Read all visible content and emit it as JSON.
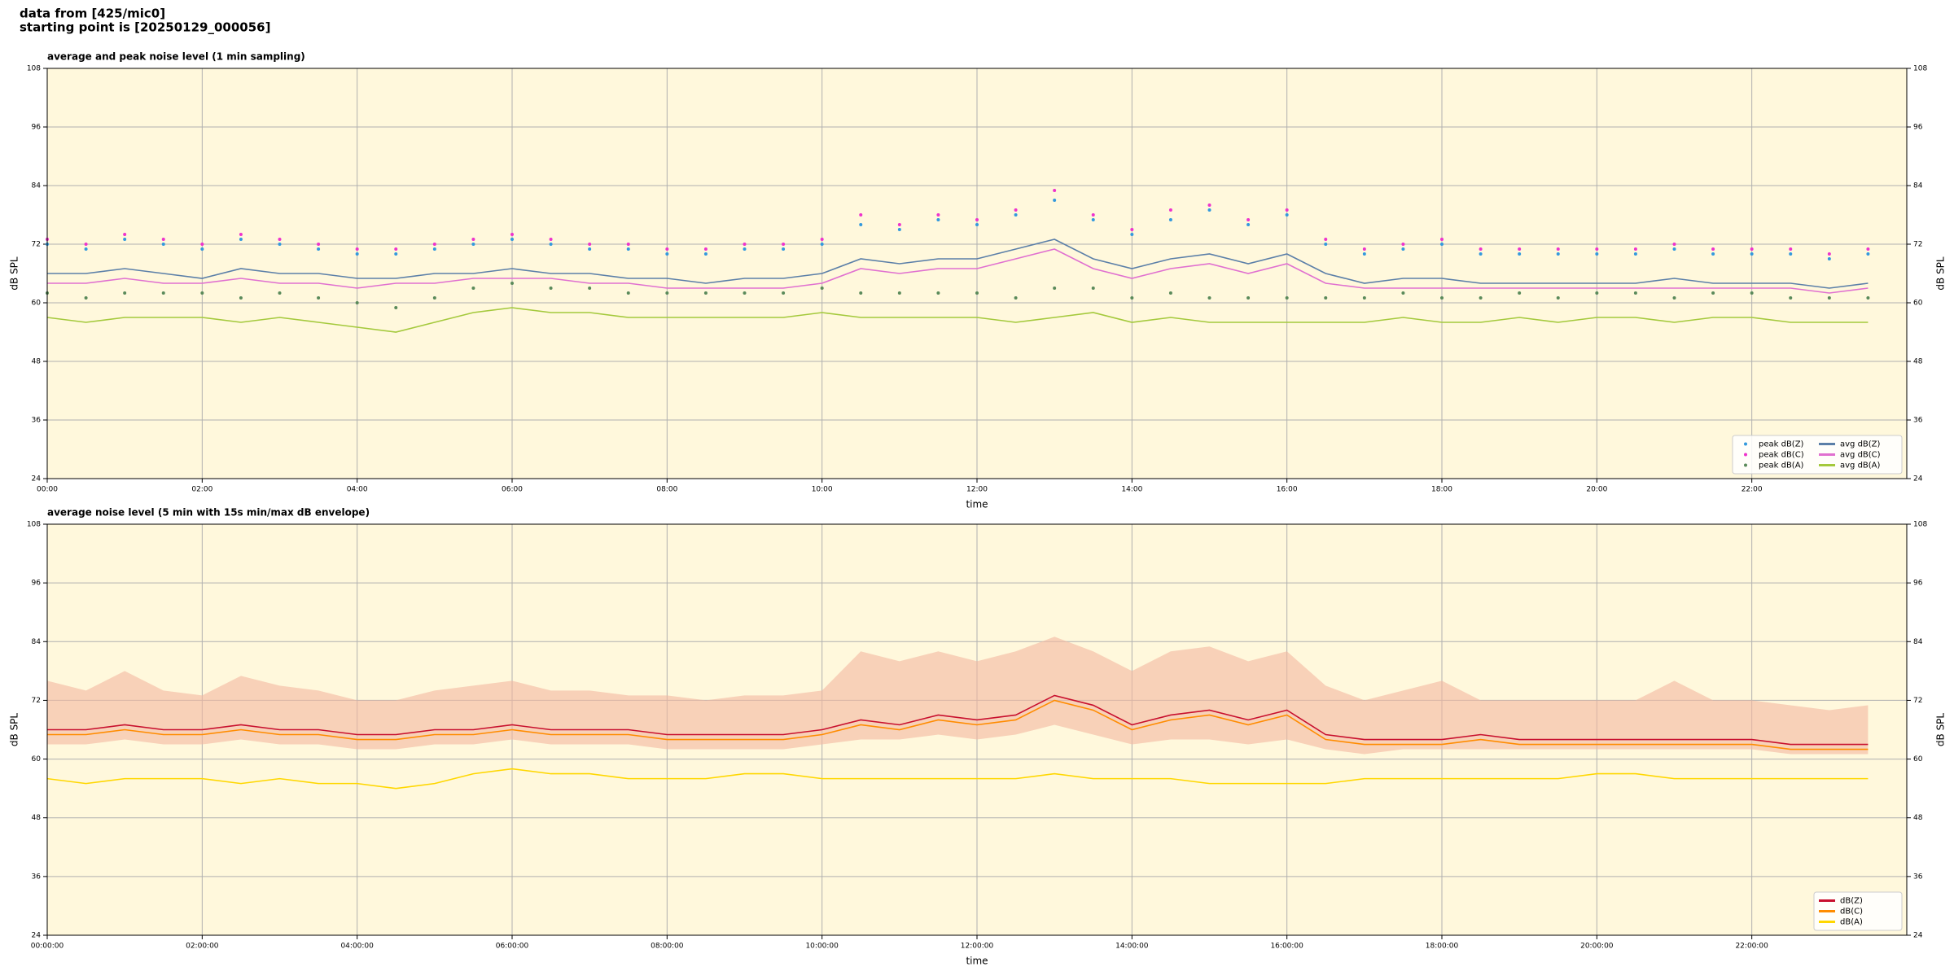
{
  "header": {
    "lines": [
      "data from [425/mic0]",
      "starting point is [20250129_000056]"
    ]
  },
  "chart_data": [
    {
      "type": "line",
      "title": "average and peak noise level (1 min sampling)",
      "xlabel": "time",
      "ylabel": "dB SPL",
      "x": [
        0,
        0.5,
        1,
        1.5,
        2,
        2.5,
        3,
        3.5,
        4,
        4.5,
        5,
        5.5,
        6,
        6.5,
        7,
        7.5,
        8,
        8.5,
        9,
        9.5,
        10,
        10.5,
        11,
        11.5,
        12,
        12.5,
        13,
        13.5,
        14,
        14.5,
        15,
        15.5,
        16,
        16.5,
        17,
        17.5,
        18,
        18.5,
        19,
        19.5,
        20,
        20.5,
        21,
        21.5,
        22,
        22.5,
        23,
        23.5
      ],
      "xlim": [
        0,
        24
      ],
      "ylim": [
        24,
        108
      ],
      "xticks": [
        {
          "value": 0,
          "label": "00:00"
        },
        {
          "value": 2,
          "label": "02:00"
        },
        {
          "value": 4,
          "label": "04:00"
        },
        {
          "value": 6,
          "label": "06:00"
        },
        {
          "value": 8,
          "label": "08:00"
        },
        {
          "value": 10,
          "label": "10:00"
        },
        {
          "value": 12,
          "label": "12:00"
        },
        {
          "value": 14,
          "label": "14:00"
        },
        {
          "value": 16,
          "label": "16:00"
        },
        {
          "value": 18,
          "label": "18:00"
        },
        {
          "value": 20,
          "label": "20:00"
        },
        {
          "value": 22,
          "label": "22:00"
        }
      ],
      "yticks": [
        24,
        36,
        48,
        60,
        72,
        84,
        96,
        108
      ],
      "grid": true,
      "background": "#fff8dc",
      "legend": "lower right",
      "legend_columns": 2,
      "series": [
        {
          "name": "peak dB(Z)",
          "style": "scatter",
          "color": "#3399dd",
          "values": [
            72,
            71,
            73,
            72,
            71,
            73,
            72,
            71,
            70,
            70,
            71,
            72,
            73,
            72,
            71,
            71,
            70,
            70,
            71,
            71,
            72,
            76,
            75,
            77,
            76,
            78,
            81,
            77,
            74,
            77,
            79,
            76,
            78,
            72,
            70,
            71,
            72,
            70,
            70,
            70,
            70,
            70,
            71,
            70,
            70,
            70,
            69,
            70
          ]
        },
        {
          "name": "peak dB(C)",
          "style": "scatter",
          "color": "#ee33cc",
          "values": [
            73,
            72,
            74,
            73,
            72,
            74,
            73,
            72,
            71,
            71,
            72,
            73,
            74,
            73,
            72,
            72,
            71,
            71,
            72,
            72,
            73,
            78,
            76,
            78,
            77,
            79,
            83,
            78,
            75,
            79,
            80,
            77,
            79,
            73,
            71,
            72,
            73,
            71,
            71,
            71,
            71,
            71,
            72,
            71,
            71,
            71,
            70,
            71
          ]
        },
        {
          "name": "peak dB(A)",
          "style": "scatter",
          "color": "#5a8a5a",
          "values": [
            62,
            61,
            62,
            62,
            62,
            61,
            62,
            61,
            60,
            59,
            61,
            63,
            64,
            63,
            63,
            62,
            62,
            62,
            62,
            62,
            63,
            62,
            62,
            62,
            62,
            61,
            63,
            63,
            61,
            62,
            61,
            61,
            61,
            61,
            61,
            62,
            61,
            61,
            62,
            61,
            62,
            62,
            61,
            62,
            62,
            61,
            61,
            61
          ]
        },
        {
          "name": "avg dB(Z)",
          "style": "line",
          "color": "#5b7fa8",
          "values": [
            66,
            66,
            67,
            66,
            65,
            67,
            66,
            66,
            65,
            65,
            66,
            66,
            67,
            66,
            66,
            65,
            65,
            64,
            65,
            65,
            66,
            69,
            68,
            69,
            69,
            71,
            73,
            69,
            67,
            69,
            70,
            68,
            70,
            66,
            64,
            65,
            65,
            64,
            64,
            64,
            64,
            64,
            65,
            64,
            64,
            64,
            63,
            64
          ]
        },
        {
          "name": "avg dB(C)",
          "style": "line",
          "color": "#e070d0",
          "values": [
            64,
            64,
            65,
            64,
            64,
            65,
            64,
            64,
            63,
            64,
            64,
            65,
            65,
            65,
            64,
            64,
            63,
            63,
            63,
            63,
            64,
            67,
            66,
            67,
            67,
            69,
            71,
            67,
            65,
            67,
            68,
            66,
            68,
            64,
            63,
            63,
            63,
            63,
            63,
            63,
            63,
            63,
            63,
            63,
            63,
            63,
            62,
            63
          ]
        },
        {
          "name": "avg dB(A)",
          "style": "line",
          "color": "#a4c93c",
          "values": [
            57,
            56,
            57,
            57,
            57,
            56,
            57,
            56,
            55,
            54,
            56,
            58,
            59,
            58,
            58,
            57,
            57,
            57,
            57,
            57,
            58,
            57,
            57,
            57,
            57,
            56,
            57,
            58,
            56,
            57,
            56,
            56,
            56,
            56,
            56,
            57,
            56,
            56,
            57,
            56,
            57,
            57,
            56,
            57,
            57,
            56,
            56,
            56
          ]
        }
      ]
    },
    {
      "type": "line",
      "title": "average noise level (5 min with 15s min/max dB envelope)",
      "xlabel": "time",
      "ylabel": "dB SPL",
      "x": [
        0,
        0.5,
        1,
        1.5,
        2,
        2.5,
        3,
        3.5,
        4,
        4.5,
        5,
        5.5,
        6,
        6.5,
        7,
        7.5,
        8,
        8.5,
        9,
        9.5,
        10,
        10.5,
        11,
        11.5,
        12,
        12.5,
        13,
        13.5,
        14,
        14.5,
        15,
        15.5,
        16,
        16.5,
        17,
        17.5,
        18,
        18.5,
        19,
        19.5,
        20,
        20.5,
        21,
        21.5,
        22,
        22.5,
        23,
        23.5
      ],
      "xlim": [
        0,
        24
      ],
      "ylim": [
        24,
        108
      ],
      "xticks": [
        {
          "value": 0,
          "label": "00:00:00"
        },
        {
          "value": 2,
          "label": "02:00:00"
        },
        {
          "value": 4,
          "label": "04:00:00"
        },
        {
          "value": 6,
          "label": "06:00:00"
        },
        {
          "value": 8,
          "label": "08:00:00"
        },
        {
          "value": 10,
          "label": "10:00:00"
        },
        {
          "value": 12,
          "label": "12:00:00"
        },
        {
          "value": 14,
          "label": "14:00:00"
        },
        {
          "value": 16,
          "label": "16:00:00"
        },
        {
          "value": 18,
          "label": "18:00:00"
        },
        {
          "value": 20,
          "label": "20:00:00"
        },
        {
          "value": 22,
          "label": "22:00:00"
        }
      ],
      "yticks": [
        24,
        36,
        48,
        60,
        72,
        84,
        96,
        108
      ],
      "grid": true,
      "background": "#fff8dc",
      "legend": "lower right",
      "legend_columns": 1,
      "envelope": {
        "color": "#f4b8a0",
        "upper": [
          76,
          74,
          78,
          74,
          73,
          77,
          75,
          74,
          72,
          72,
          74,
          75,
          76,
          74,
          74,
          73,
          73,
          72,
          73,
          73,
          74,
          82,
          80,
          82,
          80,
          82,
          85,
          82,
          78,
          82,
          83,
          80,
          82,
          75,
          72,
          74,
          76,
          72,
          72,
          72,
          72,
          72,
          76,
          72,
          72,
          71,
          70,
          71
        ],
        "lower": [
          63,
          63,
          64,
          63,
          63,
          64,
          63,
          63,
          62,
          62,
          63,
          63,
          64,
          63,
          63,
          63,
          62,
          62,
          62,
          62,
          63,
          64,
          64,
          65,
          64,
          65,
          67,
          65,
          63,
          64,
          64,
          63,
          64,
          62,
          61,
          62,
          62,
          62,
          62,
          62,
          62,
          62,
          62,
          62,
          62,
          61,
          61,
          61
        ]
      },
      "series": [
        {
          "name": "dB(Z)",
          "style": "line",
          "color": "#c8102e",
          "values": [
            66,
            66,
            67,
            66,
            66,
            67,
            66,
            66,
            65,
            65,
            66,
            66,
            67,
            66,
            66,
            66,
            65,
            65,
            65,
            65,
            66,
            68,
            67,
            69,
            68,
            69,
            73,
            71,
            67,
            69,
            70,
            68,
            70,
            65,
            64,
            64,
            64,
            65,
            64,
            64,
            64,
            64,
            64,
            64,
            64,
            63,
            63,
            63
          ]
        },
        {
          "name": "dB(C)",
          "style": "line",
          "color": "#ff8c00",
          "values": [
            65,
            65,
            66,
            65,
            65,
            66,
            65,
            65,
            64,
            64,
            65,
            65,
            66,
            65,
            65,
            65,
            64,
            64,
            64,
            64,
            65,
            67,
            66,
            68,
            67,
            68,
            72,
            70,
            66,
            68,
            69,
            67,
            69,
            64,
            63,
            63,
            63,
            64,
            63,
            63,
            63,
            63,
            63,
            63,
            63,
            62,
            62,
            62
          ]
        },
        {
          "name": "dB(A)",
          "style": "line",
          "color": "#ffd700",
          "values": [
            56,
            55,
            56,
            56,
            56,
            55,
            56,
            55,
            55,
            54,
            55,
            57,
            58,
            57,
            57,
            56,
            56,
            56,
            57,
            57,
            56,
            56,
            56,
            56,
            56,
            56,
            57,
            56,
            56,
            56,
            55,
            55,
            55,
            55,
            56,
            56,
            56,
            56,
            56,
            56,
            57,
            57,
            56,
            56,
            56,
            56,
            56,
            56
          ]
        }
      ]
    }
  ]
}
